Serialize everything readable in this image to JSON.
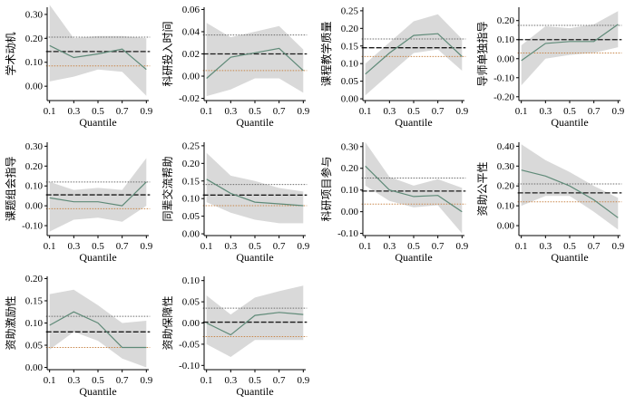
{
  "chart_data": [
    {
      "type": "line",
      "ylabel": "学术动机",
      "xlabel": "Quantile",
      "x": [
        0.1,
        0.3,
        0.5,
        0.7,
        0.9
      ],
      "xticks": [
        "0.1",
        "0.3",
        "0.5",
        "0.7",
        "0.9"
      ],
      "ylim": [
        -0.06,
        0.33
      ],
      "yticks": [
        0.0,
        0.1,
        0.2,
        0.3
      ],
      "ytick_labels": [
        "0.00",
        "0.10",
        "0.20",
        "0.30"
      ],
      "series": [
        {
          "name": "quantile estimate",
          "values": [
            0.17,
            0.12,
            0.135,
            0.155,
            0.07
          ]
        },
        {
          "name": "CI lower",
          "values": [
            0.02,
            0.04,
            0.07,
            0.06,
            -0.04
          ]
        },
        {
          "name": "CI upper",
          "values": [
            0.34,
            0.2,
            0.21,
            0.21,
            0.2
          ]
        },
        {
          "name": "OLS",
          "values": [
            0.145,
            0.145,
            0.145,
            0.145,
            0.145
          ]
        },
        {
          "name": "OLS CI lower",
          "values": [
            0.085,
            0.085,
            0.085,
            0.085,
            0.085
          ]
        },
        {
          "name": "OLS CI upper",
          "values": [
            0.205,
            0.205,
            0.205,
            0.205,
            0.205
          ]
        }
      ]
    },
    {
      "type": "line",
      "ylabel": "科研投入时间",
      "xlabel": "Quantile",
      "x": [
        0.1,
        0.3,
        0.5,
        0.7,
        0.9
      ],
      "xticks": [
        "0.1",
        "0.3",
        "0.5",
        "0.7",
        "0.9"
      ],
      "ylim": [
        -0.022,
        0.062
      ],
      "yticks": [
        -0.02,
        0.0,
        0.02,
        0.04,
        0.06
      ],
      "ytick_labels": [
        "-0.02",
        "0.00",
        "0.02",
        "0.04",
        "0.06"
      ],
      "series": [
        {
          "name": "quantile estimate",
          "values": [
            -0.002,
            0.017,
            0.021,
            0.025,
            0.005
          ]
        },
        {
          "name": "CI lower",
          "values": [
            -0.018,
            -0.012,
            -0.002,
            -0.002,
            -0.015
          ]
        },
        {
          "name": "CI upper",
          "values": [
            0.048,
            0.035,
            0.04,
            0.045,
            0.024
          ]
        },
        {
          "name": "OLS",
          "values": [
            0.02,
            0.02,
            0.02,
            0.02,
            0.02
          ]
        },
        {
          "name": "OLS CI lower",
          "values": [
            0.005,
            0.005,
            0.005,
            0.005,
            0.005
          ]
        },
        {
          "name": "OLS CI upper",
          "values": [
            0.037,
            0.037,
            0.037,
            0.037,
            0.037
          ]
        }
      ]
    },
    {
      "type": "line",
      "ylabel": "课程教学质量",
      "xlabel": "Quantile",
      "x": [
        0.1,
        0.3,
        0.5,
        0.7,
        0.9
      ],
      "xticks": [
        "0.1",
        "0.3",
        "0.5",
        "0.7",
        "0.9"
      ],
      "ylim": [
        -0.005,
        0.26
      ],
      "yticks": [
        0.0,
        0.05,
        0.1,
        0.15,
        0.2,
        0.25
      ],
      "ytick_labels": [
        "0.00",
        "0.05",
        "0.10",
        "0.15",
        "0.20",
        "0.25"
      ],
      "series": [
        {
          "name": "quantile estimate",
          "values": [
            0.07,
            0.13,
            0.18,
            0.185,
            0.12
          ]
        },
        {
          "name": "CI lower",
          "values": [
            0.01,
            0.07,
            0.13,
            0.14,
            0.08
          ]
        },
        {
          "name": "CI upper",
          "values": [
            0.1,
            0.16,
            0.22,
            0.24,
            0.17
          ]
        },
        {
          "name": "OLS",
          "values": [
            0.145,
            0.145,
            0.145,
            0.145,
            0.145
          ]
        },
        {
          "name": "OLS CI lower",
          "values": [
            0.12,
            0.12,
            0.12,
            0.12,
            0.12
          ]
        },
        {
          "name": "OLS CI upper",
          "values": [
            0.17,
            0.17,
            0.17,
            0.17,
            0.17
          ]
        }
      ]
    },
    {
      "type": "line",
      "ylabel": "导师单独指导",
      "xlabel": "Quantile",
      "x": [
        0.1,
        0.3,
        0.5,
        0.7,
        0.9
      ],
      "xticks": [
        "0.1",
        "0.3",
        "0.5",
        "0.7",
        "0.9"
      ],
      "ylim": [
        -0.22,
        0.27
      ],
      "yticks": [
        -0.2,
        -0.1,
        0.0,
        0.1,
        0.2
      ],
      "ytick_labels": [
        "-0.20",
        "-0.10",
        "0.00",
        "0.10",
        "0.20"
      ],
      "series": [
        {
          "name": "quantile estimate",
          "values": [
            -0.01,
            0.08,
            0.09,
            0.09,
            0.18
          ]
        },
        {
          "name": "CI lower",
          "values": [
            -0.14,
            0.0,
            0.02,
            0.03,
            0.06
          ]
        },
        {
          "name": "CI upper",
          "values": [
            0.07,
            0.17,
            0.16,
            0.18,
            0.25
          ]
        },
        {
          "name": "OLS",
          "values": [
            0.1,
            0.1,
            0.1,
            0.1,
            0.1
          ]
        },
        {
          "name": "OLS CI lower",
          "values": [
            0.03,
            0.03,
            0.03,
            0.03,
            0.03
          ]
        },
        {
          "name": "OLS CI upper",
          "values": [
            0.175,
            0.175,
            0.175,
            0.175,
            0.175
          ]
        }
      ]
    },
    {
      "type": "line",
      "ylabel": "课题组会指导",
      "xlabel": "Quantile",
      "x": [
        0.1,
        0.3,
        0.5,
        0.7,
        0.9
      ],
      "xticks": [
        "0.1",
        "0.3",
        "0.5",
        "0.7",
        "0.9"
      ],
      "ylim": [
        -0.15,
        0.32
      ],
      "yticks": [
        -0.1,
        0.0,
        0.1,
        0.2,
        0.3
      ],
      "ytick_labels": [
        "-0.10",
        "0.00",
        "0.10",
        "0.20",
        "0.30"
      ],
      "series": [
        {
          "name": "quantile estimate",
          "values": [
            0.04,
            0.02,
            0.02,
            0.0,
            0.12
          ]
        },
        {
          "name": "CI lower",
          "values": [
            -0.13,
            -0.07,
            -0.06,
            -0.08,
            0.0
          ]
        },
        {
          "name": "CI upper",
          "values": [
            0.12,
            0.08,
            0.09,
            0.08,
            0.24
          ]
        },
        {
          "name": "OLS",
          "values": [
            0.055,
            0.055,
            0.055,
            0.055,
            0.055
          ]
        },
        {
          "name": "OLS CI lower",
          "values": [
            -0.015,
            -0.015,
            -0.015,
            -0.015,
            -0.015
          ]
        },
        {
          "name": "OLS CI upper",
          "values": [
            0.12,
            0.12,
            0.12,
            0.12,
            0.12
          ]
        }
      ]
    },
    {
      "type": "line",
      "ylabel": "同辈交流帮助",
      "xlabel": "Quantile",
      "x": [
        0.1,
        0.3,
        0.5,
        0.7,
        0.9
      ],
      "xticks": [
        "0.1",
        "0.3",
        "0.5",
        "0.7",
        "0.9"
      ],
      "ylim": [
        -0.005,
        0.26
      ],
      "yticks": [
        0.0,
        0.05,
        0.1,
        0.15,
        0.2,
        0.25
      ],
      "ytick_labels": [
        "0.00",
        "0.05",
        "0.10",
        "0.15",
        "0.20",
        "0.25"
      ],
      "series": [
        {
          "name": "quantile estimate",
          "values": [
            0.155,
            0.115,
            0.09,
            0.085,
            0.08
          ]
        },
        {
          "name": "CI lower",
          "values": [
            0.09,
            0.06,
            0.04,
            0.03,
            0.03
          ]
        },
        {
          "name": "CI upper",
          "values": [
            0.23,
            0.165,
            0.15,
            0.13,
            0.12
          ]
        },
        {
          "name": "OLS",
          "values": [
            0.11,
            0.11,
            0.11,
            0.11,
            0.11
          ]
        },
        {
          "name": "OLS CI lower",
          "values": [
            0.08,
            0.08,
            0.08,
            0.08,
            0.08
          ]
        },
        {
          "name": "OLS CI upper",
          "values": [
            0.14,
            0.14,
            0.14,
            0.14,
            0.14
          ]
        }
      ]
    },
    {
      "type": "line",
      "ylabel": "科研项目参与",
      "xlabel": "Quantile",
      "x": [
        0.1,
        0.3,
        0.5,
        0.7,
        0.9
      ],
      "xticks": [
        "0.1",
        "0.3",
        "0.5",
        "0.7",
        "0.9"
      ],
      "ylim": [
        -0.11,
        0.32
      ],
      "yticks": [
        -0.1,
        0.0,
        0.1,
        0.2,
        0.3
      ],
      "ytick_labels": [
        "-0.10",
        "0.00",
        "0.10",
        "0.20",
        "0.30"
      ],
      "series": [
        {
          "name": "quantile estimate",
          "values": [
            0.21,
            0.1,
            0.07,
            0.075,
            0.0
          ]
        },
        {
          "name": "CI lower",
          "values": [
            0.12,
            0.05,
            0.02,
            0.03,
            -0.1
          ]
        },
        {
          "name": "CI upper",
          "values": [
            0.32,
            0.16,
            0.12,
            0.15,
            0.11
          ]
        },
        {
          "name": "OLS",
          "values": [
            0.095,
            0.095,
            0.095,
            0.095,
            0.095
          ]
        },
        {
          "name": "OLS CI lower",
          "values": [
            0.035,
            0.035,
            0.035,
            0.035,
            0.035
          ]
        },
        {
          "name": "OLS CI upper",
          "values": [
            0.155,
            0.155,
            0.155,
            0.155,
            0.155
          ]
        }
      ]
    },
    {
      "type": "line",
      "ylabel": "资助公平性",
      "xlabel": "Quantile",
      "x": [
        0.1,
        0.3,
        0.5,
        0.7,
        0.9
      ],
      "xticks": [
        "0.1",
        "0.3",
        "0.5",
        "0.7",
        "0.9"
      ],
      "ylim": [
        -0.05,
        0.42
      ],
      "yticks": [
        0.0,
        0.1,
        0.2,
        0.3,
        0.4
      ],
      "ytick_labels": [
        "0.00",
        "0.10",
        "0.20",
        "0.30",
        "0.40"
      ],
      "series": [
        {
          "name": "quantile estimate",
          "values": [
            0.28,
            0.25,
            0.2,
            0.13,
            0.04
          ]
        },
        {
          "name": "CI lower",
          "values": [
            0.1,
            0.15,
            0.15,
            0.07,
            -0.02
          ]
        },
        {
          "name": "CI upper",
          "values": [
            0.41,
            0.33,
            0.27,
            0.2,
            0.14
          ]
        },
        {
          "name": "OLS",
          "values": [
            0.165,
            0.165,
            0.165,
            0.165,
            0.165
          ]
        },
        {
          "name": "OLS CI lower",
          "values": [
            0.12,
            0.12,
            0.12,
            0.12,
            0.12
          ]
        },
        {
          "name": "OLS CI upper",
          "values": [
            0.21,
            0.21,
            0.21,
            0.21,
            0.21
          ]
        }
      ]
    },
    {
      "type": "line",
      "ylabel": "资助激励性",
      "xlabel": "Quantile",
      "x": [
        0.1,
        0.3,
        0.5,
        0.7,
        0.9
      ],
      "xticks": [
        "0.1",
        "0.3",
        "0.5",
        "0.7",
        "0.9"
      ],
      "ylim": [
        -0.005,
        0.205
      ],
      "yticks": [
        0.0,
        0.05,
        0.1,
        0.15,
        0.2
      ],
      "ytick_labels": [
        "0.00",
        "0.05",
        "0.10",
        "0.15",
        "0.20"
      ],
      "series": [
        {
          "name": "quantile estimate",
          "values": [
            0.095,
            0.125,
            0.1,
            0.045,
            0.045
          ]
        },
        {
          "name": "CI lower",
          "values": [
            0.04,
            0.08,
            0.06,
            0.02,
            0.0
          ]
        },
        {
          "name": "CI upper",
          "values": [
            0.165,
            0.175,
            0.14,
            0.1,
            0.105
          ]
        },
        {
          "name": "OLS",
          "values": [
            0.08,
            0.08,
            0.08,
            0.08,
            0.08
          ]
        },
        {
          "name": "OLS CI lower",
          "values": [
            0.045,
            0.045,
            0.045,
            0.045,
            0.045
          ]
        },
        {
          "name": "OLS CI upper",
          "values": [
            0.115,
            0.115,
            0.115,
            0.115,
            0.115
          ]
        }
      ]
    },
    {
      "type": "line",
      "ylabel": "资助保障性",
      "xlabel": "Quantile",
      "x": [
        0.1,
        0.3,
        0.5,
        0.7,
        0.9
      ],
      "xticks": [
        "0.1",
        "0.3",
        "0.5",
        "0.7",
        "0.9"
      ],
      "ylim": [
        -0.11,
        0.11
      ],
      "yticks": [
        -0.1,
        -0.05,
        0.0,
        0.05,
        0.1
      ],
      "ytick_labels": [
        "-0.10",
        "-0.05",
        "0.00",
        "0.05",
        "0.10"
      ],
      "series": [
        {
          "name": "quantile estimate",
          "values": [
            0.0,
            -0.028,
            0.018,
            0.025,
            0.02
          ]
        },
        {
          "name": "CI lower",
          "values": [
            -0.05,
            -0.08,
            -0.04,
            -0.04,
            -0.04
          ]
        },
        {
          "name": "CI upper",
          "values": [
            0.065,
            0.02,
            0.06,
            0.075,
            0.088
          ]
        },
        {
          "name": "OLS",
          "values": [
            0.002,
            0.002,
            0.002,
            0.002,
            0.002
          ]
        },
        {
          "name": "OLS CI lower",
          "values": [
            -0.032,
            -0.032,
            -0.032,
            -0.032,
            -0.032
          ]
        },
        {
          "name": "OLS CI upper",
          "values": [
            0.035,
            0.035,
            0.035,
            0.035,
            0.035
          ]
        }
      ]
    }
  ],
  "colors": {
    "band": "#d9d9d9",
    "line": "#5f8a78",
    "ols": "#1a1a1a",
    "ci_upper": "#6b6b6b",
    "ci_lower": "#c8864a",
    "axis": "#000000"
  }
}
